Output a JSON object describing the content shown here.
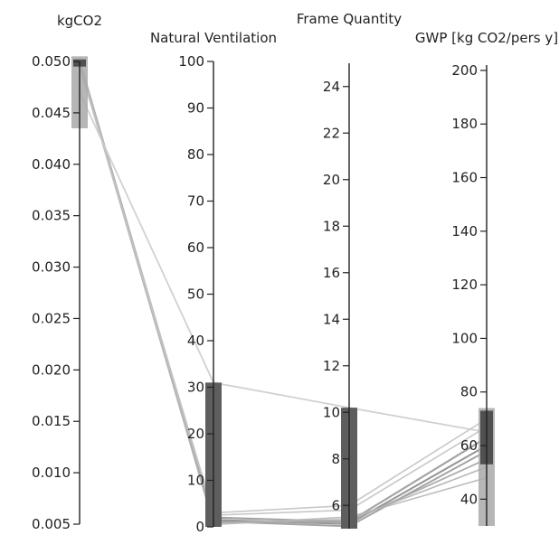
{
  "chart_data": {
    "type": "parallel-coordinates",
    "axes": [
      {
        "key": "kgco2",
        "label": "kgCO2",
        "range": [
          0.005,
          0.05
        ],
        "ticks": [
          0.005,
          0.01,
          0.015,
          0.02,
          0.025,
          0.03,
          0.035,
          0.04,
          0.045,
          0.05
        ],
        "tick_labels": [
          "0.005",
          "0.010",
          "0.015",
          "0.020",
          "0.025",
          "0.030",
          "0.035",
          "0.040",
          "0.045",
          "0.050"
        ],
        "tick_side": "left",
        "brush": [
          0.0435,
          0.0505
        ],
        "handle": [
          0.0495,
          0.0502
        ]
      },
      {
        "key": "natural_ventilation",
        "label": "Natural Ventilation",
        "range": [
          0,
          100
        ],
        "ticks": [
          0,
          10,
          20,
          30,
          40,
          50,
          60,
          70,
          80,
          90,
          100
        ],
        "tick_labels": [
          "0",
          "10",
          "20",
          "30",
          "40",
          "50",
          "60",
          "70",
          "80",
          "90",
          "100"
        ],
        "tick_side": "left",
        "brush": [
          0,
          31
        ],
        "handle": null
      },
      {
        "key": "frame_quantity",
        "label": "Frame Quantity",
        "range": [
          5,
          25
        ],
        "ticks": [
          6,
          8,
          10,
          12,
          14,
          16,
          18,
          20,
          22,
          24
        ],
        "tick_labels": [
          "6",
          "8",
          "10",
          "12",
          "14",
          "16",
          "18",
          "20",
          "22",
          "24"
        ],
        "tick_side": "left",
        "brush": [
          5,
          10.2
        ],
        "handle": null
      },
      {
        "key": "gwp",
        "label": "GWP [kg CO2/pers y]",
        "range": [
          30,
          202
        ],
        "ticks": [
          40,
          60,
          80,
          100,
          120,
          140,
          160,
          180,
          200
        ],
        "tick_labels": [
          "40",
          "60",
          "80",
          "100",
          "120",
          "140",
          "160",
          "180",
          "200"
        ],
        "tick_side": "left",
        "brush": [
          30,
          74
        ],
        "handle": [
          53,
          73
        ]
      }
    ],
    "lines": [
      {
        "values": [
          0.05,
          2,
          5.3,
          63
        ],
        "color": "#9a9a9a",
        "width": 2.2
      },
      {
        "values": [
          0.0499,
          1.5,
          5.2,
          60
        ],
        "color": "#8a8a8a",
        "width": 2.0
      },
      {
        "values": [
          0.0501,
          1.2,
          5.1,
          58
        ],
        "color": "#9a9a9a",
        "width": 2.0
      },
      {
        "values": [
          0.0498,
          1.0,
          5.3,
          55
        ],
        "color": "#a5a5a5",
        "width": 1.8
      },
      {
        "values": [
          0.0497,
          0.8,
          5.4,
          52
        ],
        "color": "#b0b0b0",
        "width": 1.6
      },
      {
        "values": [
          0.0502,
          0.5,
          5.5,
          48
        ],
        "color": "#b5b5b5",
        "width": 1.6
      },
      {
        "values": [
          0.0496,
          3,
          6.0,
          70
        ],
        "color": "#c2c2c2",
        "width": 1.6
      },
      {
        "values": [
          0.0495,
          2.5,
          5.8,
          67
        ],
        "color": "#c2c2c2",
        "width": 1.6
      },
      {
        "values": [
          0.047,
          31,
          10.2,
          65
        ],
        "color": "#cccccc",
        "width": 1.8
      }
    ]
  }
}
